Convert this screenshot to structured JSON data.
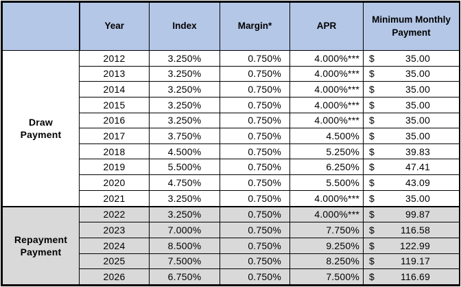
{
  "table": {
    "corner_label": "",
    "currency_symbol": "$",
    "columns": [
      "Year",
      "Index",
      "Margin*",
      "APR",
      "Minimum Monthly Payment"
    ],
    "colors": {
      "header_bg": "#b5c7e7",
      "draw_row_bg": "#ffffff",
      "repayment_row_bg": "#d9d9d9",
      "border": "#000000"
    },
    "sections": [
      {
        "label": "Draw\nPayment",
        "rows": [
          {
            "year": "2012",
            "index": "3.250%",
            "margin": "0.750%",
            "apr": "4.000%***",
            "payment": "35.00"
          },
          {
            "year": "2013",
            "index": "3.250%",
            "margin": "0.750%",
            "apr": "4.000%***",
            "payment": "35.00"
          },
          {
            "year": "2014",
            "index": "3.250%",
            "margin": "0.750%",
            "apr": "4.000%***",
            "payment": "35.00"
          },
          {
            "year": "2015",
            "index": "3.250%",
            "margin": "0.750%",
            "apr": "4.000%***",
            "payment": "35.00"
          },
          {
            "year": "2016",
            "index": "3.250%",
            "margin": "0.750%",
            "apr": "4.000%***",
            "payment": "35.00"
          },
          {
            "year": "2017",
            "index": "3.750%",
            "margin": "0.750%",
            "apr": "4.500%",
            "payment": "35.00"
          },
          {
            "year": "2018",
            "index": "4.500%",
            "margin": "0.750%",
            "apr": "5.250%",
            "payment": "39.83"
          },
          {
            "year": "2019",
            "index": "5.500%",
            "margin": "0.750%",
            "apr": "6.250%",
            "payment": "47.41"
          },
          {
            "year": "2020",
            "index": "4.750%",
            "margin": "0.750%",
            "apr": "5.500%",
            "payment": "43.09"
          },
          {
            "year": "2021",
            "index": "3.250%",
            "margin": "0.750%",
            "apr": "4.000%***",
            "payment": "35.00"
          }
        ]
      },
      {
        "label": "Repayment\nPayment",
        "rows": [
          {
            "year": "2022",
            "index": "3.250%",
            "margin": "0.750%",
            "apr": "4.000%***",
            "payment": "99.87"
          },
          {
            "year": "2023",
            "index": "7.000%",
            "margin": "0.750%",
            "apr": "7.750%",
            "payment": "116.58"
          },
          {
            "year": "2024",
            "index": "8.500%",
            "margin": "0.750%",
            "apr": "9.250%",
            "payment": "122.99"
          },
          {
            "year": "2025",
            "index": "7.500%",
            "margin": "0.750%",
            "apr": "8.250%",
            "payment": "119.17"
          },
          {
            "year": "2026",
            "index": "6.750%",
            "margin": "0.750%",
            "apr": "7.500%",
            "payment": "116.69"
          }
        ]
      }
    ]
  }
}
